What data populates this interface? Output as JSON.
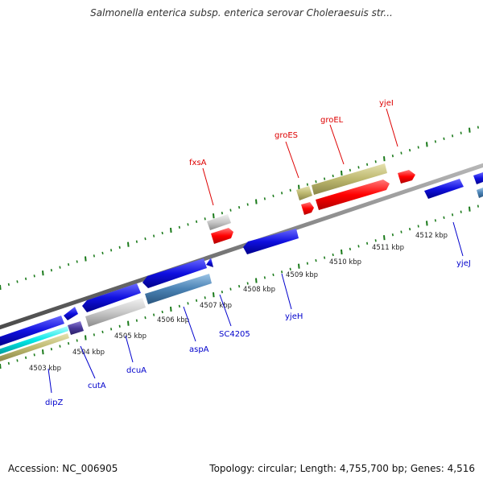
{
  "title": "Salmonella enterica subsp. enterica serovar Choleraesuis str...",
  "footer": {
    "accession_label": "Accession:",
    "accession": "NC_006905",
    "topology_label": "Topology:",
    "topology": "circular",
    "length_label": "Length:",
    "length": "4,755,700 bp",
    "genes_label": "Genes:",
    "genes": "4,516"
  },
  "colors": {
    "forward_label": "#dd0000",
    "reverse_label": "#0000cc",
    "tick": "#1a7a1a",
    "backbone": "#7a7a7a",
    "red": "#ff0000",
    "blue": "#1010e0",
    "steel": "#4a82b4",
    "olive": "#bdb86f",
    "grey": "#c8c8c8",
    "cyan": "#00e6e6",
    "purple": "#4a3a9a"
  },
  "kbp_labels": [
    "4503 kbp",
    "4504 kbp",
    "4505 kbp",
    "4506 kbp",
    "4507 kbp",
    "4508 kbp",
    "4509 kbp",
    "4510 kbp",
    "4511 kbp",
    "4512 kbp"
  ],
  "forward_genes": [
    {
      "name": "fxsA",
      "color": "grey"
    },
    {
      "name": "groES",
      "color": "olive"
    },
    {
      "name": "groEL",
      "color": "olive"
    },
    {
      "name": "yjeI",
      "color": "red"
    }
  ],
  "reverse_genes": [
    {
      "name": "dipZ",
      "color": "olive"
    },
    {
      "name": "cutA",
      "color": "purple"
    },
    {
      "name": "dcuA",
      "color": "grey"
    },
    {
      "name": "aspA",
      "color": "steel"
    },
    {
      "name": "SC4205",
      "color": "blue"
    },
    {
      "name": "yjeH",
      "color": "blue"
    },
    {
      "name": "yjeJ",
      "color": "blue"
    }
  ]
}
